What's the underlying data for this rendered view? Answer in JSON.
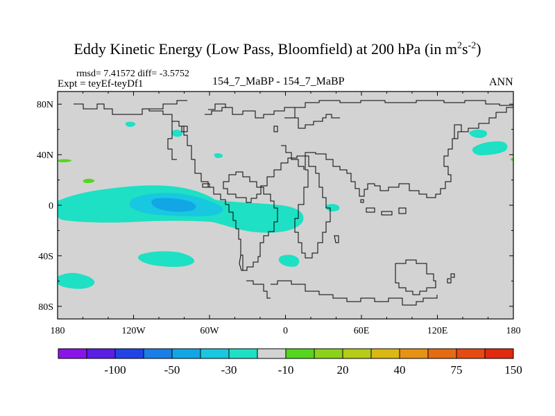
{
  "title": {
    "main": "Eddy Kinetic Energy (Low Pass, Bloomfield) at 200 hPa (in m",
    "sup1": "2",
    "mid": "s",
    "sup2": "-2",
    "end": ")"
  },
  "stats": {
    "rmsd_line": "rmsd= 7.41572 diff= -3.5752"
  },
  "expt_label": "Expt = teyEf-teyDf1",
  "center_label": "154_7_MaBP - 154_7_MaBP",
  "season_label": "ANN",
  "map": {
    "background_color": "#d3d3d3",
    "coastline_color": "#000000",
    "lon_ticks": [
      {
        "lon": -180,
        "label": "180"
      },
      {
        "lon": -120,
        "label": "120W"
      },
      {
        "lon": -60,
        "label": "60W"
      },
      {
        "lon": 0,
        "label": "0"
      },
      {
        "lon": 60,
        "label": "60E"
      },
      {
        "lon": 120,
        "label": "120E"
      },
      {
        "lon": 180,
        "label": "180"
      }
    ],
    "lat_ticks": [
      {
        "lat": 80,
        "label": "80N"
      },
      {
        "lat": 40,
        "label": "40N"
      },
      {
        "lat": 0,
        "label": "0"
      },
      {
        "lat": -40,
        "label": "40S"
      },
      {
        "lat": -80,
        "label": "80S"
      }
    ],
    "lon_range": [
      -180,
      180
    ],
    "lat_range": [
      -90,
      90
    ]
  },
  "colorbar": {
    "colors": [
      "#8a14e8",
      "#5a1ee6",
      "#2244e6",
      "#1a7ee8",
      "#12a6e6",
      "#18c8e0",
      "#1ee0c4",
      "#d3d3d3",
      "#56d61e",
      "#8cd21a",
      "#b6cc18",
      "#dab814",
      "#e69214",
      "#e66a12",
      "#e64a10",
      "#e22a0e"
    ],
    "labels": [
      {
        "after_box": 1,
        "text": "-100"
      },
      {
        "after_box": 3,
        "text": "-50"
      },
      {
        "after_box": 5,
        "text": "-30"
      },
      {
        "after_box": 7,
        "text": "-10"
      },
      {
        "after_box": 9,
        "text": "20"
      },
      {
        "after_box": 11,
        "text": "40"
      },
      {
        "after_box": 13,
        "text": "75"
      },
      {
        "after_box": 15,
        "text": "150"
      }
    ]
  }
}
